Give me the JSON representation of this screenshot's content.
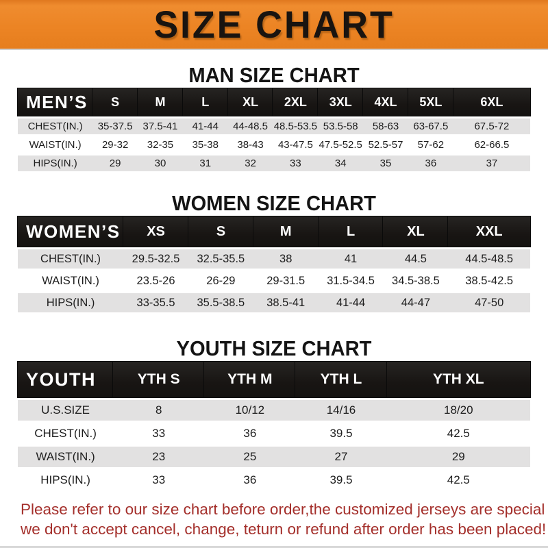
{
  "banner": {
    "title": "SIZE CHART"
  },
  "colors": {
    "banner_orange": "#ec8424",
    "header_black": "#181513",
    "row_shaded_gray": "#e2e1e1",
    "note_red": "#a42f2b"
  },
  "men": {
    "title": "MAN SIZE CHART",
    "corner": "MEN’S",
    "sizes": [
      "S",
      "M",
      "L",
      "XL",
      "2XL",
      "3XL",
      "4XL",
      "5XL",
      "6XL"
    ],
    "rows": [
      {
        "label": "CHEST(IN.)",
        "values": [
          "35-37.5",
          "37.5-41",
          "41-44",
          "44-48.5",
          "48.5-53.5",
          "53.5-58",
          "58-63",
          "63-67.5",
          "67.5-72"
        ]
      },
      {
        "label": "WAIST(IN.)",
        "values": [
          "29-32",
          "32-35",
          "35-38",
          "38-43",
          "43-47.5",
          "47.5-52.5",
          "52.5-57",
          "57-62",
          "62-66.5"
        ]
      },
      {
        "label": "HIPS(IN.)",
        "values": [
          "29",
          "30",
          "31",
          "32",
          "33",
          "34",
          "35",
          "36",
          "37"
        ]
      }
    ]
  },
  "women": {
    "title": "WOMEN SIZE CHART",
    "corner": "WOMEN’S",
    "sizes": [
      "XS",
      "S",
      "M",
      "L",
      "XL",
      "XXL"
    ],
    "rows": [
      {
        "label": "CHEST(IN.)",
        "values": [
          "29.5-32.5",
          "32.5-35.5",
          "38",
          "41",
          "44.5",
          "44.5-48.5"
        ]
      },
      {
        "label": "WAIST(IN.)",
        "values": [
          "23.5-26",
          "26-29",
          "29-31.5",
          "31.5-34.5",
          "34.5-38.5",
          "38.5-42.5"
        ]
      },
      {
        "label": "HIPS(IN.)",
        "values": [
          "33-35.5",
          "35.5-38.5",
          "38.5-41",
          "41-44",
          "44-47",
          "47-50"
        ]
      }
    ]
  },
  "youth": {
    "title": "YOUTH SIZE CHART",
    "corner": "YOUTH",
    "sizes": [
      "YTH S",
      "YTH M",
      "YTH L",
      "YTH XL"
    ],
    "rows": [
      {
        "label": "U.S.SIZE",
        "values": [
          "8",
          "10/12",
          "14/16",
          "18/20"
        ]
      },
      {
        "label": "CHEST(IN.)",
        "values": [
          "33",
          "36",
          "39.5",
          "42.5"
        ]
      },
      {
        "label": "WAIST(IN.)",
        "values": [
          "23",
          "25",
          "27",
          "29"
        ]
      },
      {
        "label": "HIPS(IN.)",
        "values": [
          "33",
          "36",
          "39.5",
          "42.5"
        ]
      }
    ]
  },
  "note": {
    "line1": "Please refer to our size chart before order,the customized jerseys are special products,",
    "line2": "we don't accept cancel, change, teturn or refund after order has been placed!"
  }
}
